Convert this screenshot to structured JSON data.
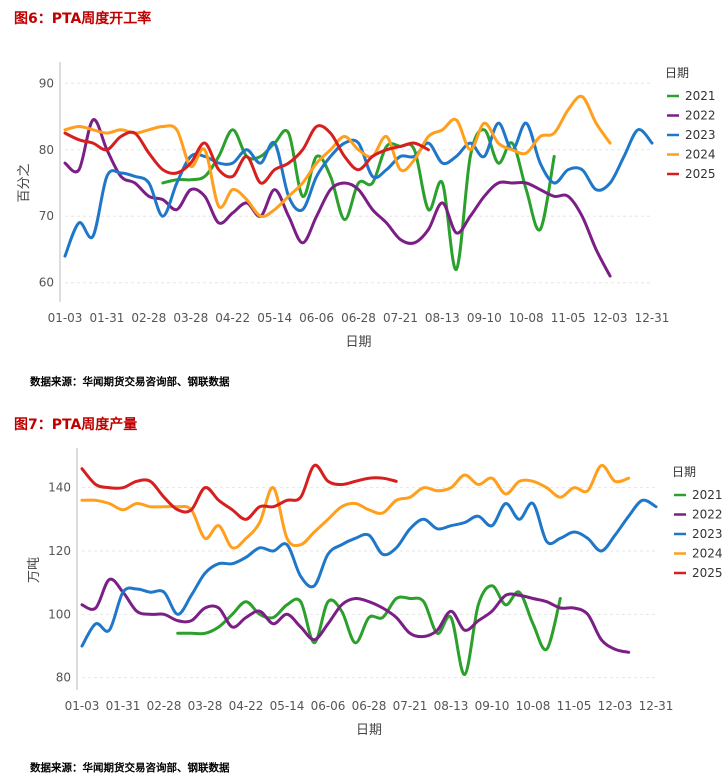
{
  "fig6": {
    "title": "图6：PTA周度开工率"
  },
  "fig7": {
    "title": "图7：PTA周度产量"
  },
  "source1": "数据来源：华闻期货交易咨询部、钢联数据",
  "source2": "数据来源：华闻期货交易咨询部、钢联数据",
  "colors": {
    "2021": "#2ca02c",
    "2022": "#7b1f86",
    "2023": "#1f77c9",
    "2024": "#ff9f1c",
    "2025": "#d62020"
  },
  "chart_data": [
    {
      "type": "line",
      "title": "图6：PTA周度开工率",
      "xlabel": "日期",
      "ylabel": "百分之",
      "legend_title": "日期",
      "legend_position": "right",
      "ylim": [
        58,
        92
      ],
      "yticks": [
        60,
        70,
        80,
        90
      ],
      "x_ticks": [
        "01-03",
        "01-31",
        "02-28",
        "03-28",
        "04-22",
        "05-14",
        "06-06",
        "06-28",
        "07-21",
        "08-13",
        "09-10",
        "10-08",
        "11-05",
        "12-03",
        "12-31"
      ],
      "grid": true,
      "series": [
        {
          "name": "2021",
          "x_start": 7,
          "values": [
            75,
            75.5,
            75.5,
            76,
            79,
            83,
            79,
            79,
            81,
            82.5,
            73,
            79,
            76,
            69.5,
            75,
            75,
            80.5,
            80.5,
            80,
            71,
            75,
            62,
            79,
            83,
            78,
            81,
            74,
            68,
            79
          ]
        },
        {
          "name": "2022",
          "x_start": 0,
          "values": [
            78,
            77,
            84.5,
            80,
            76,
            75,
            73,
            72.5,
            71,
            74,
            73,
            69,
            70.5,
            72,
            70,
            74,
            70,
            66,
            70,
            74,
            75,
            74,
            71,
            69,
            66.5,
            66,
            68,
            72,
            67.5,
            70,
            73,
            75,
            75,
            75,
            74,
            73,
            73,
            70,
            65,
            61
          ]
        },
        {
          "name": "2023",
          "x_start": 0,
          "values": [
            64,
            69,
            67,
            76,
            76.5,
            76,
            75,
            70,
            75,
            79,
            79,
            78,
            78,
            80,
            78,
            81,
            73,
            71,
            76,
            79,
            81,
            81,
            76,
            77,
            79,
            79,
            81,
            78,
            79,
            81,
            79,
            84,
            80,
            84,
            78,
            75,
            77,
            77,
            74,
            75,
            79,
            83,
            81
          ]
        },
        {
          "name": "2024",
          "x_start": 0,
          "values": [
            83,
            83.5,
            83,
            82.5,
            83,
            82.5,
            83,
            83.5,
            83,
            77.5,
            80,
            71.5,
            74,
            72.5,
            70,
            71,
            73,
            75,
            78,
            80,
            82,
            80,
            79,
            82,
            77,
            78.5,
            82,
            83,
            84.5,
            80,
            84,
            81,
            80,
            79.5,
            82,
            82.5,
            86,
            88,
            84,
            81
          ]
        },
        {
          "name": "2025",
          "x_start": 0,
          "values": [
            82.5,
            81.5,
            81,
            80,
            82,
            82.5,
            79.5,
            77,
            76.5,
            78,
            81,
            77,
            76,
            79,
            75,
            77,
            78,
            80,
            83.5,
            82.5,
            79,
            77,
            79,
            80,
            80.5,
            81,
            80
          ]
        }
      ]
    },
    {
      "type": "line",
      "title": "图7：PTA周度产量",
      "xlabel": "日期",
      "ylabel": "万吨",
      "legend_title": "日期",
      "legend_position": "right",
      "ylim": [
        78,
        150
      ],
      "yticks": [
        80,
        100,
        120,
        140
      ],
      "x_ticks": [
        "01-03",
        "01-31",
        "02-28",
        "03-28",
        "04-22",
        "05-14",
        "06-06",
        "06-28",
        "07-21",
        "08-13",
        "09-10",
        "10-08",
        "11-05",
        "12-03",
        "12-31"
      ],
      "grid": true,
      "series": [
        {
          "name": "2021",
          "x_start": 7,
          "values": [
            94,
            94,
            94,
            96,
            100,
            104,
            100,
            99,
            103,
            104,
            91,
            104,
            101,
            91,
            99,
            99,
            105,
            105,
            104,
            94,
            99,
            81,
            103,
            109,
            103,
            107,
            97,
            89,
            105
          ]
        },
        {
          "name": "2022",
          "x_start": 0,
          "values": [
            103,
            102,
            111,
            107,
            101,
            100,
            100,
            98,
            98,
            102,
            102,
            96,
            99,
            101,
            97,
            100,
            96,
            92,
            97,
            103,
            105,
            104,
            102,
            99,
            94,
            93,
            95,
            101,
            95,
            98,
            101,
            106,
            106,
            105,
            104,
            102,
            102,
            100,
            92,
            89,
            88
          ]
        },
        {
          "name": "2023",
          "x_start": 0,
          "values": [
            90,
            97,
            95,
            107,
            108,
            107,
            107,
            100,
            106,
            113,
            116,
            116,
            118,
            121,
            120,
            122,
            112,
            109,
            119,
            122,
            124,
            125,
            119,
            121,
            127,
            130,
            127,
            128,
            129,
            131,
            128,
            135,
            130,
            135,
            123,
            124,
            126,
            124,
            120,
            125,
            131,
            136,
            134
          ]
        },
        {
          "name": "2024",
          "x_start": 0,
          "values": [
            136,
            136,
            135,
            133,
            135,
            134,
            134,
            134,
            133,
            124,
            128,
            121,
            124,
            129,
            140,
            124,
            122,
            126,
            130,
            134,
            135,
            133,
            132,
            136,
            137,
            140,
            139,
            140,
            144,
            141,
            143,
            138,
            142,
            142,
            140,
            137,
            140,
            139,
            147,
            142,
            143
          ]
        },
        {
          "name": "2025",
          "x_start": 0,
          "values": [
            146,
            141,
            140,
            140,
            142,
            142,
            137,
            133,
            133,
            140,
            136,
            133,
            130,
            134,
            134,
            136,
            137,
            147,
            142,
            141,
            142,
            143,
            143,
            142
          ]
        }
      ]
    }
  ]
}
